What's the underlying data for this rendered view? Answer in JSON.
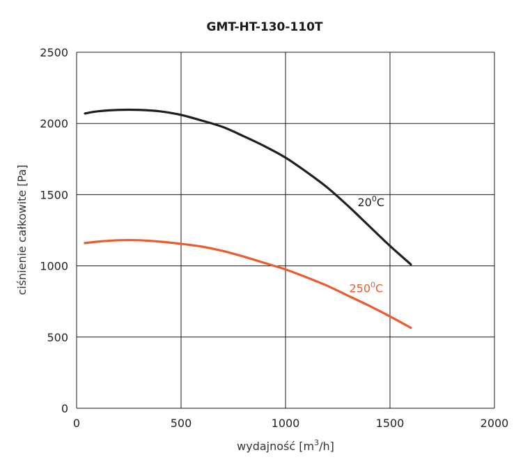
{
  "chart_data": {
    "type": "line",
    "title": "GMT-HT-130-110T",
    "xlabel_main": "wydajność [m",
    "xlabel_sup": "3",
    "xlabel_tail": "/h]",
    "ylabel": "ciśnienie całkowite [Pa]",
    "xlim": [
      0,
      2000
    ],
    "ylim": [
      0,
      2500
    ],
    "xticks": [
      0,
      500,
      1000,
      1500,
      2000
    ],
    "yticks": [
      0,
      500,
      1000,
      1500,
      2000,
      2500
    ],
    "grid": true,
    "series": [
      {
        "name_main": "20",
        "name_sup": "0",
        "name_tail": "C",
        "color": "#1f1f1f",
        "x": [
          40,
          100,
          200,
          300,
          400,
          500,
          600,
          700,
          800,
          900,
          1000,
          1100,
          1200,
          1300,
          1400,
          1500,
          1600
        ],
        "y": [
          2070,
          2085,
          2095,
          2095,
          2085,
          2060,
          2020,
          1975,
          1910,
          1840,
          1760,
          1660,
          1550,
          1420,
          1280,
          1140,
          1010
        ],
        "label_at": [
          1345,
          1420
        ]
      },
      {
        "name_main": "250",
        "name_sup": "0",
        "name_tail": "C",
        "color": "#ee5a2f",
        "x": [
          40,
          100,
          200,
          300,
          400,
          500,
          600,
          700,
          800,
          900,
          1000,
          1100,
          1200,
          1300,
          1400,
          1500,
          1600
        ],
        "y": [
          1160,
          1170,
          1180,
          1180,
          1170,
          1155,
          1135,
          1105,
          1065,
          1020,
          975,
          920,
          860,
          790,
          720,
          645,
          565
        ],
        "label_at": [
          1305,
          815
        ]
      }
    ]
  }
}
